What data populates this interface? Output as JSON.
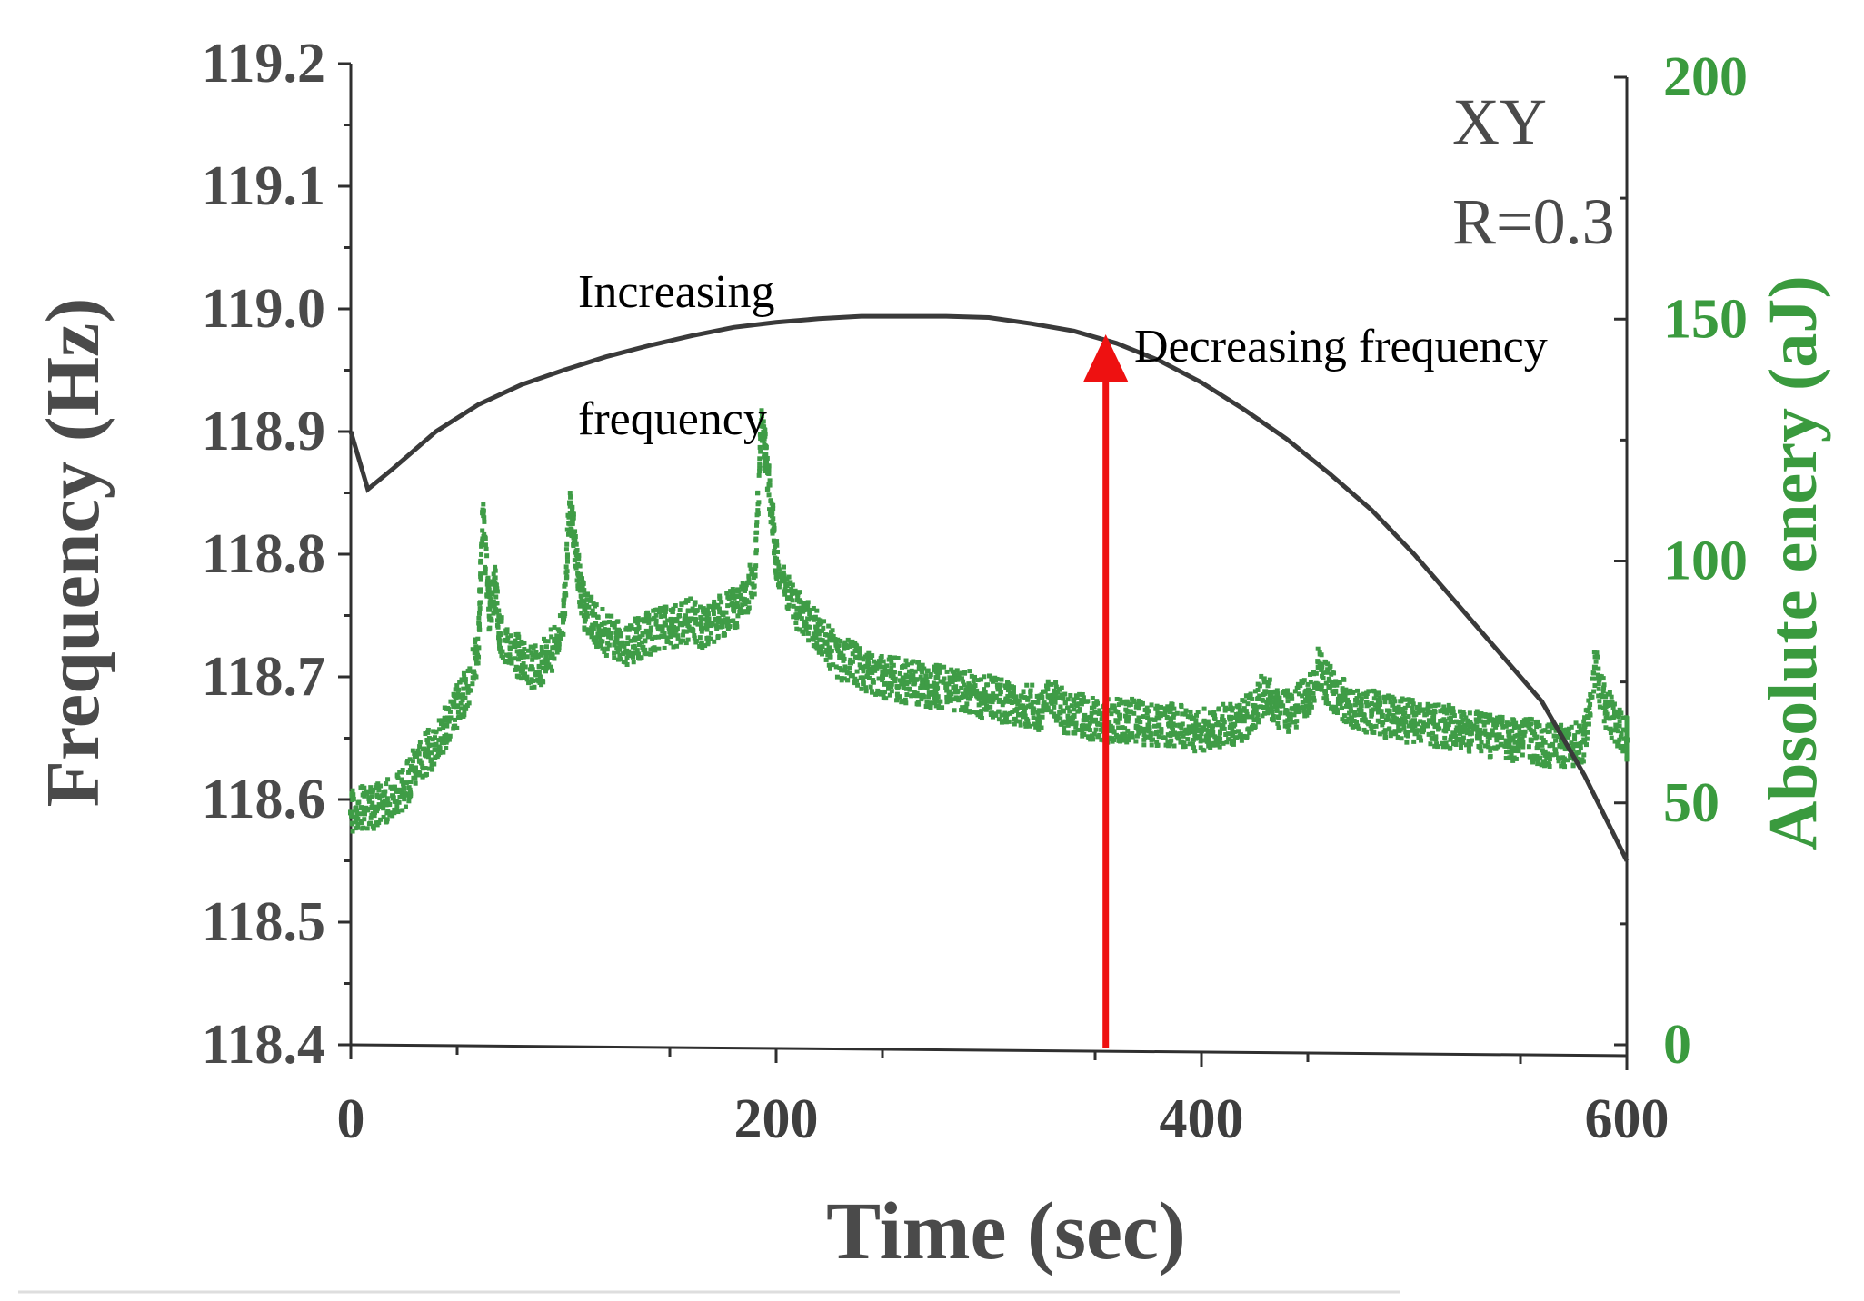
{
  "chart_data": {
    "type": "line+scatter",
    "x_axis": {
      "label": "Time (sec)",
      "range": [
        0,
        600
      ],
      "ticks": [
        0,
        200,
        400,
        600
      ],
      "tick_labels": [
        "0",
        "200",
        "400",
        "600"
      ]
    },
    "y_left_axis": {
      "label": "Frequency (Hz)",
      "range": [
        118.4,
        119.2
      ],
      "ticks": [
        118.4,
        118.5,
        118.6,
        118.7,
        118.8,
        118.9,
        119.0,
        119.1,
        119.2
      ],
      "tick_labels": [
        "118.4",
        "118.5",
        "118.6",
        "118.7",
        "118.8",
        "118.9",
        "119.0",
        "119.1",
        "119.2"
      ]
    },
    "y_right_axis": {
      "label": "Absolute enery (aJ)",
      "range": [
        0,
        200
      ],
      "ticks": [
        0,
        50,
        100,
        150,
        200
      ],
      "tick_labels": [
        "0",
        "50",
        "100",
        "150",
        "200"
      ],
      "color": "#3a9a3e"
    },
    "series": [
      {
        "name": "Frequency",
        "axis": "left",
        "type": "line",
        "color": "#3a3a3a",
        "x": [
          0,
          8,
          20,
          40,
          60,
          80,
          100,
          120,
          140,
          160,
          180,
          200,
          220,
          240,
          260,
          280,
          300,
          320,
          340,
          360,
          380,
          400,
          420,
          440,
          460,
          480,
          500,
          520,
          540,
          560,
          580,
          600
        ],
        "y": [
          118.9,
          118.853,
          118.87,
          118.9,
          118.922,
          118.938,
          118.95,
          118.961,
          118.97,
          118.978,
          118.985,
          118.989,
          118.992,
          118.994,
          118.994,
          118.994,
          118.993,
          118.988,
          118.982,
          118.972,
          118.958,
          118.94,
          118.918,
          118.894,
          118.866,
          118.836,
          118.8,
          118.76,
          118.72,
          118.68,
          118.62,
          118.55
        ]
      },
      {
        "name": "Absolute energy",
        "axis": "right",
        "type": "scatter",
        "color": "#3f9c46",
        "x": [
          0,
          5,
          10,
          15,
          20,
          25,
          30,
          35,
          40,
          45,
          50,
          55,
          60,
          62,
          65,
          68,
          70,
          75,
          80,
          85,
          90,
          95,
          100,
          103,
          105,
          108,
          110,
          115,
          120,
          125,
          130,
          135,
          140,
          145,
          150,
          155,
          160,
          165,
          170,
          175,
          180,
          185,
          190,
          193,
          195,
          198,
          200,
          205,
          210,
          215,
          220,
          225,
          230,
          235,
          240,
          245,
          250,
          255,
          260,
          265,
          270,
          275,
          280,
          285,
          290,
          295,
          300,
          305,
          310,
          315,
          320,
          325,
          330,
          335,
          340,
          345,
          350,
          355,
          360,
          365,
          370,
          375,
          380,
          385,
          390,
          395,
          400,
          405,
          410,
          415,
          420,
          425,
          430,
          435,
          440,
          445,
          450,
          455,
          460,
          465,
          470,
          475,
          480,
          485,
          490,
          495,
          500,
          505,
          510,
          515,
          520,
          525,
          530,
          535,
          540,
          545,
          550,
          555,
          560,
          565,
          570,
          575,
          580,
          585,
          590,
          595,
          600
        ],
        "y": [
          48,
          49,
          49,
          50,
          51,
          53,
          57,
          60,
          62,
          66,
          70,
          74,
          82,
          110,
          90,
          95,
          85,
          82,
          80,
          78,
          79,
          82,
          88,
          112,
          105,
          94,
          90,
          87,
          85,
          84,
          83,
          84,
          85,
          86,
          86,
          87,
          88,
          86,
          87,
          89,
          90,
          92,
          97,
          128,
          122,
          110,
          100,
          95,
          90,
          88,
          85,
          82,
          80,
          79,
          78,
          77,
          76,
          76,
          75,
          75,
          74,
          74,
          74,
          73,
          73,
          72,
          72,
          71,
          71,
          70,
          70,
          69,
          72,
          69,
          68,
          68,
          67,
          67,
          67,
          67,
          67,
          66,
          66,
          66,
          66,
          65,
          65,
          65,
          66,
          66,
          67,
          70,
          73,
          70,
          69,
          70,
          72,
          78,
          74,
          72,
          70,
          69,
          69,
          68,
          68,
          67,
          67,
          66,
          66,
          66,
          65,
          65,
          65,
          64,
          64,
          63,
          63,
          63,
          62,
          62,
          62,
          62,
          63,
          78,
          70,
          66,
          63
        ]
      }
    ],
    "legend": {
      "position": "top-right",
      "entries": [
        "XY",
        "R=0.3"
      ]
    },
    "annotations": [
      {
        "text": "Increasing",
        "x": 200,
        "y": 119.0
      },
      {
        "text": "frequency",
        "x": 200,
        "y": 118.9
      },
      {
        "text": "Decreasing frequency",
        "x": 355,
        "y": 118.965
      }
    ],
    "marker": {
      "type": "vertical-arrow",
      "x": 355,
      "color": "#ee1111"
    },
    "grid": false
  }
}
